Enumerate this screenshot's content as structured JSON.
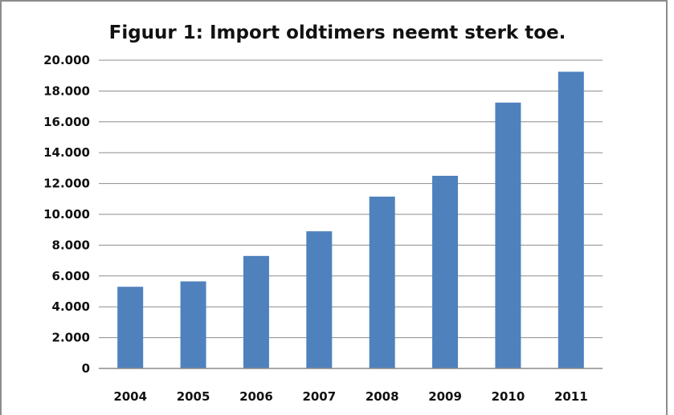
{
  "chart_data": {
    "type": "bar",
    "title": "Figuur 1: Import oldtimers neemt sterk toe.",
    "xlabel": "",
    "ylabel": "",
    "categories": [
      "2004",
      "2005",
      "2006",
      "2007",
      "2008",
      "2009",
      "2010",
      "2011"
    ],
    "values": [
      5300,
      5650,
      7300,
      8900,
      11150,
      12500,
      17250,
      19250
    ],
    "ylim": [
      0,
      20000
    ],
    "yticks": [
      0,
      2000,
      4000,
      6000,
      8000,
      10000,
      12000,
      14000,
      16000,
      18000,
      20000
    ],
    "ytick_labels": [
      "0",
      "2.000",
      "4.000",
      "6.000",
      "8.000",
      "10.000",
      "12.000",
      "14.000",
      "16.000",
      "18.000",
      "20.000"
    ],
    "grid": true,
    "legend": "none",
    "bar_color": "#4f81bd",
    "grid_color": "#8c8c8c"
  }
}
